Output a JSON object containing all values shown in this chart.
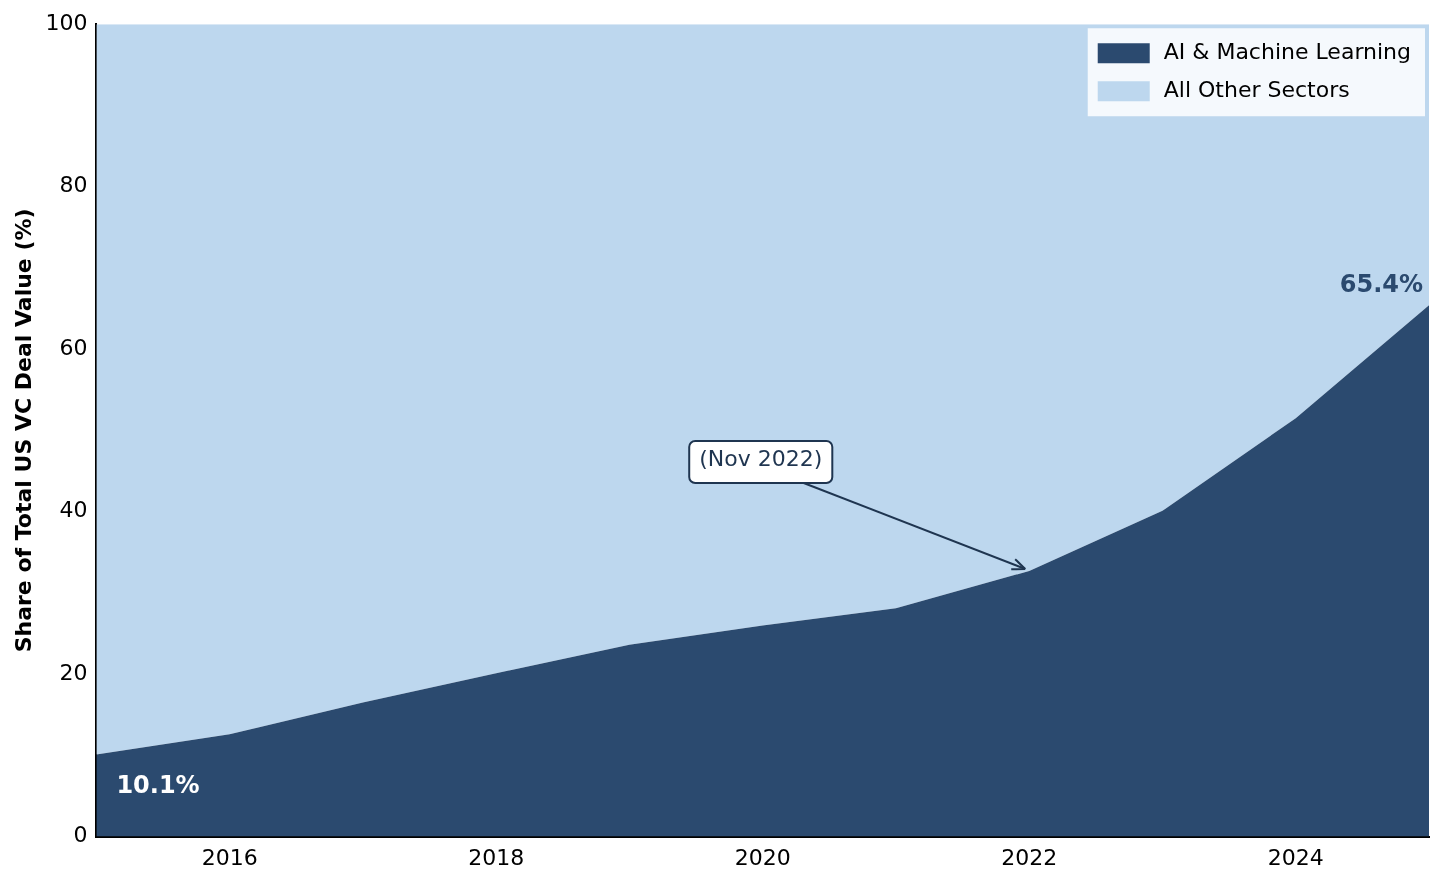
{
  "chart_data": {
    "type": "area",
    "stacked": true,
    "ylabel": "Share of Total US VC Deal Value (%)",
    "x": [
      2015,
      2016,
      2017,
      2018,
      2019,
      2020,
      2021,
      2022,
      2023,
      2024,
      2025
    ],
    "series": [
      {
        "name": "AI & Machine Learning",
        "color": "#2b4a6f",
        "values": [
          10.1,
          12.6,
          16.5,
          20.1,
          23.6,
          26,
          28.1,
          32.7,
          40.1,
          51.5,
          65.4
        ],
        "value_labels": [
          "10.1%",
          null,
          null,
          null,
          null,
          null,
          null,
          null,
          null,
          null,
          "65.4%"
        ]
      },
      {
        "name": "All Other Sectors",
        "color": "#bdd7ee",
        "values": [
          89.9,
          87.4,
          83.5,
          79.9,
          76.4,
          74,
          71.9,
          67.3,
          59.9,
          48.5,
          34.6
        ]
      }
    ],
    "xlim": [
      2015,
      2025
    ],
    "xticks": [
      2016,
      2018,
      2020,
      2022,
      2024
    ],
    "ylim": [
      0,
      100
    ],
    "yticks": [
      0,
      20,
      40,
      60,
      80,
      100
    ],
    "grid": false,
    "legend": "top right",
    "annotations": [
      {
        "text": "(Nov 2022)",
        "x": 2022,
        "y": 32.7
      }
    ]
  }
}
